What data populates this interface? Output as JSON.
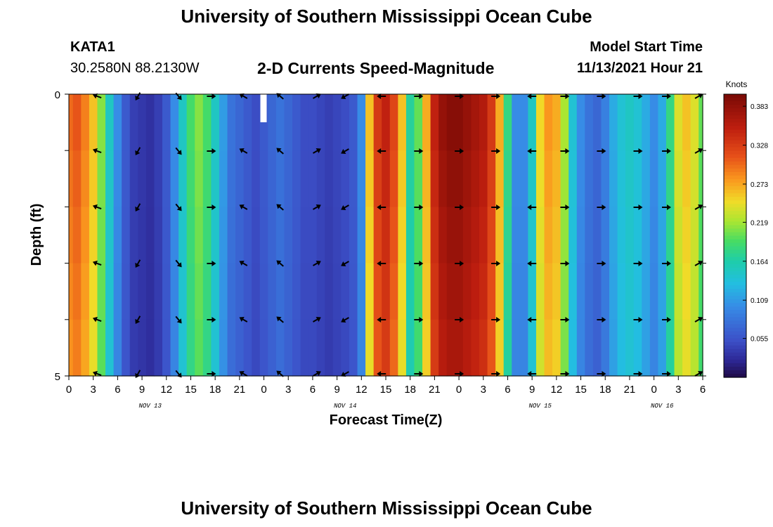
{
  "page": {
    "title": "University of Southern Mississippi Ocean Cube",
    "station": "KATA1",
    "coords": "30.2580N  88.2130W",
    "subtitle": "2-D Currents Speed-Magnitude",
    "model_label": "Model Start Time",
    "model_time": "11/13/2021 Hour 21",
    "footer_title": "University of Southern Mississippi Ocean Cube"
  },
  "chart_data": {
    "type": "heatmap",
    "title": "2-D Currents Speed-Magnitude",
    "xlabel": "Forecast Time(Z)",
    "ylabel": "Depth (ft)",
    "x_tick_labels": [
      "0",
      "3",
      "6",
      "9",
      "12",
      "15",
      "18",
      "21",
      "0",
      "3",
      "6",
      "9",
      "12",
      "15",
      "18",
      "21",
      "0",
      "3",
      "6",
      "9",
      "12",
      "15",
      "18",
      "21",
      "0",
      "3",
      "6"
    ],
    "x_hours": [
      0,
      3,
      6,
      9,
      12,
      15,
      18,
      21,
      24,
      27,
      30,
      33,
      36,
      39,
      42,
      45,
      48,
      51,
      54,
      57,
      60,
      63,
      66,
      69,
      72,
      75,
      78
    ],
    "x_range_hours": [
      0,
      78
    ],
    "date_labels": [
      {
        "text": "NOV 13",
        "hour": 10
      },
      {
        "text": "NOV 14",
        "hour": 34
      },
      {
        "text": "NOV 15",
        "hour": 58
      },
      {
        "text": "NOV 16",
        "hour": 73
      }
    ],
    "y_range_ft": [
      0,
      5
    ],
    "y_tick_labels": [
      "0",
      "5"
    ],
    "colorbar": {
      "title": "Knots",
      "range": [
        0.0,
        0.4
      ],
      "ticks": [
        "0.383",
        "0.328",
        "0.273",
        "0.219",
        "0.164",
        "0.109",
        "0.055"
      ],
      "tick_values": [
        0.383,
        0.328,
        0.273,
        0.219,
        0.164,
        0.109,
        0.055
      ]
    },
    "speed_by_hour": {
      "hours": [
        0,
        1,
        2,
        3,
        4,
        5,
        6,
        7,
        8,
        9,
        10,
        11,
        12,
        13,
        14,
        15,
        16,
        17,
        18,
        19,
        20,
        21,
        22,
        23,
        24,
        25,
        26,
        27,
        28,
        29,
        30,
        31,
        32,
        33,
        34,
        35,
        36,
        37,
        38,
        39,
        40,
        41,
        42,
        43,
        44,
        45,
        46,
        47,
        48,
        49,
        50,
        51,
        52,
        53,
        54,
        55,
        56,
        57,
        58,
        59,
        60,
        61,
        62,
        63,
        64,
        65,
        66,
        67,
        68,
        69,
        70,
        71,
        72,
        73,
        74,
        75,
        76,
        77,
        78
      ],
      "knots": [
        0.3,
        0.31,
        0.29,
        0.26,
        0.21,
        0.15,
        0.1,
        0.06,
        0.04,
        0.035,
        0.03,
        0.04,
        0.06,
        0.1,
        0.15,
        0.19,
        0.21,
        0.19,
        0.15,
        0.11,
        0.08,
        0.07,
        0.06,
        0.05,
        0.06,
        0.07,
        0.08,
        0.07,
        0.06,
        0.05,
        0.05,
        0.045,
        0.04,
        0.045,
        0.05,
        0.06,
        0.1,
        0.26,
        0.33,
        0.35,
        0.32,
        0.26,
        0.17,
        0.2,
        0.27,
        0.35,
        0.38,
        0.39,
        0.39,
        0.38,
        0.37,
        0.36,
        0.33,
        0.27,
        0.18,
        0.1,
        0.1,
        0.15,
        0.25,
        0.28,
        0.27,
        0.22,
        0.14,
        0.1,
        0.08,
        0.07,
        0.09,
        0.12,
        0.14,
        0.15,
        0.14,
        0.12,
        0.1,
        0.12,
        0.18,
        0.24,
        0.26,
        0.24,
        0.2
      ]
    },
    "vector_hours": [
      3.5,
      8.5,
      13.5,
      17.5,
      21.5,
      26,
      30.5,
      34,
      38.5,
      43,
      48,
      52.5,
      57,
      61,
      65.5,
      70,
      73.5,
      77.5
    ],
    "vector_directions_deg": [
      -160,
      120,
      50,
      0,
      -150,
      -140,
      -30,
      150,
      180,
      0,
      0,
      0,
      180,
      0,
      0,
      0,
      0,
      -30
    ]
  }
}
